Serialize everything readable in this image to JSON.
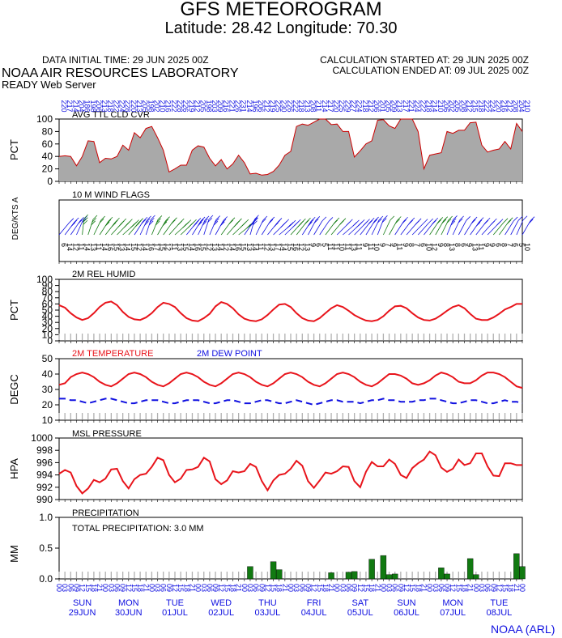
{
  "header": {
    "title": "GFS METEOROGRAM",
    "location": "Latitude: 28.42 Longitude:  70.30",
    "data_initial": "DATA INITIAL TIME: 29 JUN 2025 00Z",
    "calc_started": "CALCULATION STARTED AT: 29 JUN 2025 00Z",
    "calc_ended": "CALCULATION ENDED AT: 09 JUL 2025 00Z",
    "org": "NOAA AIR RESOURCES LABORATORY",
    "server": "READY Web Server",
    "footer": "NOAA (ARL)"
  },
  "colors": {
    "cloud_fill": "#a9a9a9",
    "cloud_line": "#cc0000",
    "red": "#e8141b",
    "blue": "#1010e0",
    "green": "#117a11",
    "hour_ticks": "#b0b0b0"
  },
  "chart_data": [
    {
      "type": "area",
      "title": "AVG TTL CLD CVR",
      "ylabel": "PCT",
      "ylim": [
        0,
        100
      ],
      "yticks": [
        0,
        20,
        40,
        60,
        80,
        100
      ],
      "x_step_hours": 3,
      "values": [
        40,
        41,
        40,
        25,
        40,
        65,
        64,
        30,
        37,
        36,
        40,
        58,
        50,
        78,
        70,
        85,
        88,
        70,
        50,
        15,
        20,
        26,
        26,
        50,
        57,
        55,
        37,
        25,
        35,
        20,
        28,
        42,
        30,
        12,
        13,
        10,
        11,
        16,
        26,
        42,
        48,
        88,
        92,
        90,
        95,
        101,
        100,
        91,
        92,
        80,
        80,
        39,
        49,
        60,
        65,
        98,
        99,
        89,
        85,
        101,
        101,
        100,
        80,
        20,
        42,
        44,
        46,
        80,
        77,
        82,
        82,
        94,
        95,
        58,
        47,
        50,
        52,
        64,
        52,
        93,
        80
      ]
    },
    {
      "type": "wind-flags",
      "title": "10 M  WIND FLAGS",
      "ylabel": "DEG/KTS  A",
      "x_step_hours": 3,
      "directions_top": [
        "220",
        "217",
        "214",
        "204",
        "186",
        "198",
        "206",
        "213",
        "218",
        "222",
        "224",
        "228",
        "220",
        "213",
        "205",
        "198",
        "202",
        "210",
        "216",
        "222",
        "228",
        "226",
        "219",
        "212",
        "205",
        "198",
        "203",
        "209",
        "216",
        "221",
        "226",
        "231",
        "214",
        "196",
        "206",
        "212",
        "219",
        "225",
        "230",
        "226",
        "222",
        "218",
        "213",
        "208",
        "211",
        "214",
        "217",
        "220",
        "225",
        "229",
        "227",
        "224",
        "218",
        "212",
        "206",
        "201",
        "205",
        "209",
        "213",
        "217",
        "221",
        "224",
        "222",
        "218",
        "214",
        "210",
        "206",
        "202",
        "205",
        "208",
        "212",
        "215",
        "218",
        "222",
        "224",
        "220",
        "216",
        "212",
        "208",
        "204",
        "210"
      ],
      "speeds_bottom": [
        "6",
        "14",
        "12",
        "11",
        "14",
        "13",
        "11",
        "14",
        "16",
        "15",
        "13",
        "14",
        "15",
        "12",
        "14",
        "16",
        "17",
        "15",
        "12",
        "11",
        "13",
        "15",
        "14",
        "16",
        "15",
        "12",
        "13",
        "14",
        "12",
        "14",
        "16",
        "15",
        "13",
        "14",
        "11",
        "12",
        "13",
        "17",
        "14",
        "15",
        "16",
        "12",
        "13",
        "9",
        "6",
        "5",
        "11",
        "11",
        "10",
        "11",
        "13",
        "11",
        "9",
        "11",
        "10",
        "9",
        "7",
        "9",
        "11",
        "9",
        "8",
        "7",
        "6",
        "10",
        "12",
        "9",
        "8",
        "13",
        "8",
        "6",
        "9",
        "13",
        "11",
        "9",
        "9",
        "6",
        "8",
        "7",
        "6",
        "5",
        "10"
      ],
      "flag_colors": [
        "b",
        "b",
        "b",
        "b",
        "g",
        "g",
        "g",
        "g",
        "g",
        "g",
        "g",
        "g",
        "g",
        "b",
        "b",
        "b",
        "g",
        "g",
        "g",
        "g",
        "g",
        "g",
        "b",
        "b",
        "b",
        "b",
        "b",
        "b",
        "g",
        "g",
        "g",
        "g",
        "b",
        "b",
        "b",
        "b",
        "b",
        "b",
        "b",
        "b",
        "g",
        "g",
        "b",
        "b",
        "b",
        "b",
        "g",
        "g",
        "b",
        "b",
        "b",
        "b",
        "b",
        "b",
        "b",
        "b",
        "g",
        "g",
        "b",
        "b",
        "b",
        "b",
        "b",
        "b",
        "g",
        "g",
        "g",
        "b",
        "b",
        "b",
        "b",
        "b",
        "b",
        "b",
        "b",
        "g",
        "g",
        "b",
        "b",
        "b",
        "b"
      ]
    },
    {
      "type": "line",
      "title": "2M REL HUMID",
      "ylabel": "PCT",
      "ylim": [
        0,
        100
      ],
      "yticks": [
        0,
        10,
        20,
        30,
        40,
        50,
        60,
        70,
        80,
        90,
        100
      ],
      "x_step_hours": 3,
      "series": [
        {
          "name": "",
          "values": [
            58,
            54,
            45,
            38,
            34,
            37,
            45,
            55,
            62,
            64,
            58,
            47,
            39,
            35,
            34,
            38,
            45,
            55,
            62,
            60,
            55,
            45,
            37,
            33,
            32,
            37,
            44,
            56,
            63,
            60,
            53,
            43,
            36,
            33,
            32,
            35,
            42,
            51,
            59,
            60,
            55,
            45,
            37,
            33,
            32,
            37,
            45,
            53,
            58,
            55,
            49,
            42,
            37,
            33,
            32,
            34,
            40,
            49,
            56,
            57,
            53,
            45,
            38,
            34,
            33,
            36,
            42,
            49,
            55,
            58,
            53,
            44,
            36,
            34,
            34,
            38,
            44,
            51,
            55,
            60,
            60
          ]
        }
      ]
    },
    {
      "type": "line",
      "ylabel": "DEGC",
      "ylim": [
        10,
        50
      ],
      "yticks": [
        10,
        20,
        30,
        40,
        50
      ],
      "x_step_hours": 3,
      "series": [
        {
          "name": "2M TEMPERATURE",
          "values": [
            33,
            34,
            38,
            40,
            41,
            40,
            38,
            35,
            33,
            32,
            34,
            37,
            40,
            41,
            40,
            38,
            35,
            33,
            32,
            34,
            37,
            40,
            41,
            40,
            38,
            35,
            33,
            32,
            34,
            37,
            40,
            41,
            40,
            38,
            35,
            33,
            32,
            34,
            37,
            40,
            41,
            40,
            38,
            35,
            33,
            32,
            34,
            37,
            40,
            41,
            40,
            38,
            35,
            33,
            32,
            34,
            37,
            40,
            40,
            39,
            37,
            34,
            33,
            34,
            36,
            39,
            41,
            40,
            38,
            35,
            34,
            34,
            36,
            39,
            41,
            41,
            40,
            38,
            35,
            32,
            31
          ]
        },
        {
          "name": "2M  DEW POINT",
          "values": [
            24,
            24,
            23,
            23,
            22,
            21,
            22,
            23,
            24,
            24,
            23,
            22,
            21,
            21,
            22,
            23,
            23,
            23,
            22,
            21,
            21,
            22,
            23,
            23,
            23,
            22,
            21,
            21,
            22,
            23,
            23,
            22,
            21,
            21,
            22,
            23,
            23,
            22,
            21,
            21,
            22,
            23,
            22,
            21,
            20,
            21,
            22,
            23,
            23,
            22,
            22,
            22,
            21,
            22,
            23,
            23,
            24,
            23,
            23,
            22,
            22,
            22,
            23,
            23,
            24,
            24,
            23,
            22,
            21,
            21,
            22,
            23,
            23,
            22,
            21,
            21,
            22,
            23,
            22,
            22,
            21
          ]
        }
      ]
    },
    {
      "type": "line",
      "title": "MSL PRESSURE",
      "ylabel": "HPA",
      "ylim": [
        990,
        1000
      ],
      "yticks": [
        990,
        992,
        994,
        996,
        998,
        1000
      ],
      "x_step_hours": 3,
      "series": [
        {
          "name": "",
          "values": [
            994.2,
            994.8,
            994.4,
            992.2,
            991.0,
            991.8,
            993.2,
            992.8,
            993.4,
            994.9,
            995.0,
            993.0,
            991.8,
            993.3,
            994.0,
            994.2,
            995.3,
            996.8,
            996.4,
            994.0,
            992.8,
            993.4,
            994.8,
            994.9,
            995.3,
            996.8,
            996.2,
            993.3,
            992.5,
            993.1,
            994.6,
            994.4,
            994.6,
            995.8,
            995.3,
            993.0,
            991.5,
            993.1,
            994.0,
            994.2,
            995.0,
            996.3,
            995.5,
            993.0,
            991.9,
            993.1,
            994.4,
            994.2,
            994.6,
            995.4,
            995.3,
            993.0,
            992.0,
            994.5,
            996.1,
            995.4,
            995.4,
            996.5,
            995.8,
            994.0,
            993.5,
            995.1,
            995.9,
            996.5,
            997.8,
            997.2,
            995.2,
            994.5,
            995.0,
            996.5,
            995.6,
            995.9,
            997.5,
            997.5,
            995.4,
            993.9,
            993.8,
            995.9,
            995.9,
            995.6,
            995.6
          ]
        }
      ]
    },
    {
      "type": "bar",
      "title": "PRECIPITATION",
      "annotation": "TOTAL PRECIPITATION:   3.0 MM",
      "ylabel": "MM",
      "ylim": [
        0,
        1.0
      ],
      "yticks": [
        0.0,
        0.5,
        1.0
      ],
      "x_step_hours": 3,
      "values": [
        0,
        0,
        0,
        0,
        0,
        0,
        0,
        0,
        0,
        0,
        0,
        0,
        0,
        0,
        0,
        0,
        0,
        0,
        0,
        0,
        0,
        0,
        0,
        0,
        0,
        0,
        0,
        0,
        0,
        0,
        0,
        0,
        0,
        0.2,
        0,
        0,
        0,
        0.28,
        0.15,
        0,
        0,
        0,
        0,
        0,
        0,
        0,
        0,
        0.1,
        0,
        0,
        0.11,
        0.12,
        0,
        0,
        0.32,
        0,
        0.38,
        0.07,
        0.08,
        0,
        0,
        0,
        0,
        0,
        0,
        0,
        0.18,
        0.08,
        0,
        0,
        0,
        0.33,
        0.07,
        0,
        0,
        0,
        0,
        0,
        0,
        0.41,
        0.2
      ]
    }
  ],
  "time_axis": {
    "hour_labels": [
      "00",
      "03",
      "06",
      "09",
      "12",
      "15",
      "18",
      "21",
      "00",
      "03",
      "06",
      "09",
      "12",
      "15",
      "18",
      "21",
      "00",
      "03",
      "06",
      "09",
      "12",
      "15",
      "18",
      "21",
      "00",
      "03",
      "06",
      "09",
      "12",
      "15",
      "18",
      "21",
      "00",
      "03",
      "06",
      "09",
      "12",
      "15",
      "18",
      "21",
      "00",
      "03",
      "06",
      "09",
      "12",
      "15",
      "18",
      "21",
      "00",
      "03",
      "06",
      "09",
      "12",
      "15",
      "18",
      "21",
      "00",
      "03",
      "06",
      "09",
      "12",
      "15",
      "18",
      "21",
      "00",
      "03",
      "06",
      "09",
      "12",
      "15",
      "18",
      "21",
      "00",
      "03",
      "06",
      "09",
      "12",
      "15",
      "18",
      "21",
      "00"
    ],
    "days": [
      {
        "day": "SUN",
        "date": "29JUN"
      },
      {
        "day": "MON",
        "date": "30JUN"
      },
      {
        "day": "TUE",
        "date": "01JUL"
      },
      {
        "day": "WED",
        "date": "02JUL"
      },
      {
        "day": "THU",
        "date": "03JUL"
      },
      {
        "day": "FRI",
        "date": "04JUL"
      },
      {
        "day": "SAT",
        "date": "05JUL"
      },
      {
        "day": "SUN",
        "date": "06JUL"
      },
      {
        "day": "MON",
        "date": "07JUL"
      },
      {
        "day": "TUE",
        "date": "08JUL"
      }
    ]
  }
}
